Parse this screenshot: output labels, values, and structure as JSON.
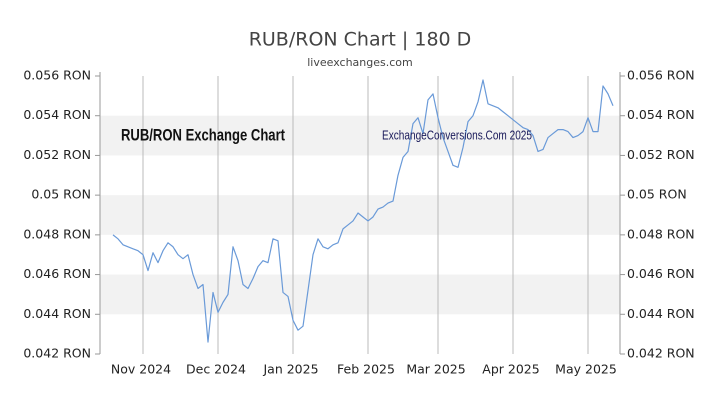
{
  "chart_data": {
    "type": "line",
    "title": "RUB/RON Chart | 180 D",
    "subtitle": "liveexchanges.com",
    "annotations": [
      "RUB/RON Exchange Chart",
      "ExchangeConversions.Com 2025"
    ],
    "categories": [
      null,
      null,
      null,
      null,
      null,
      null,
      "Nov 2024",
      null,
      null,
      null,
      null,
      null,
      null,
      null,
      null,
      null,
      null,
      null,
      null,
      null,
      null,
      "Dec 2024",
      null,
      null,
      null,
      null,
      null,
      null,
      null,
      null,
      null,
      null,
      null,
      null,
      null,
      null,
      "Jan 2025",
      null,
      null,
      null,
      null,
      null,
      null,
      null,
      null,
      null,
      null,
      null,
      null,
      null,
      null,
      "Feb 2025",
      null,
      null,
      null,
      null,
      null,
      null,
      null,
      null,
      null,
      null,
      null,
      null,
      null,
      "Mar 2025",
      null,
      null,
      null,
      null,
      null,
      null,
      null,
      null,
      null,
      null,
      null,
      null,
      null,
      null,
      "Apr 2025",
      null,
      null,
      null,
      null,
      null,
      null,
      null,
      null,
      null,
      null,
      null,
      null,
      null,
      null,
      "May 2025",
      null,
      null,
      null,
      null,
      null
    ],
    "series": [
      {
        "name": "RUB/RON",
        "color": "#6a9ad8",
        "values": [
          0.048,
          0.0478,
          0.0475,
          0.0474,
          0.0473,
          0.0472,
          0.047,
          0.0462,
          0.0471,
          0.0466,
          0.0472,
          0.0476,
          0.0474,
          0.047,
          0.0468,
          0.047,
          0.046,
          0.0453,
          0.0455,
          0.0426,
          0.0451,
          0.0441,
          0.0446,
          0.045,
          0.0474,
          0.0467,
          0.0455,
          0.0453,
          0.0458,
          0.0464,
          0.0467,
          0.0466,
          0.0478,
          0.0477,
          0.0451,
          0.0449,
          0.0437,
          0.0432,
          0.0434,
          0.0452,
          0.047,
          0.0478,
          0.0474,
          0.0473,
          0.0475,
          0.0476,
          0.0483,
          0.0485,
          0.0487,
          0.0491,
          0.0489,
          0.0487,
          0.0489,
          0.0493,
          0.0494,
          0.0496,
          0.0497,
          0.051,
          0.0519,
          0.0522,
          0.0536,
          0.0539,
          0.0531,
          0.0548,
          0.0551,
          0.0539,
          0.0529,
          0.0522,
          0.0515,
          0.0514,
          0.0524,
          0.0537,
          0.054,
          0.0547,
          0.0558,
          0.0546,
          0.0545,
          0.0544,
          0.0542,
          0.054,
          0.0538,
          0.0536,
          0.0534,
          0.0533,
          0.053,
          0.0522,
          0.0523,
          0.0529,
          0.0531,
          0.0533,
          0.0533,
          0.0532,
          0.0529,
          0.053,
          0.0532,
          0.0539,
          0.0532,
          0.0532,
          0.0555,
          0.0551,
          0.0545
        ]
      }
    ],
    "ylim": [
      0.042,
      0.056
    ],
    "yticks": [
      {
        "value": 0.042,
        "label": "0.042 RON"
      },
      {
        "value": 0.044,
        "label": "0.044 RON"
      },
      {
        "value": 0.046,
        "label": "0.046 RON"
      },
      {
        "value": 0.048,
        "label": "0.048 RON"
      },
      {
        "value": 0.05,
        "label": "0.05 RON"
      },
      {
        "value": 0.052,
        "label": "0.052 RON"
      },
      {
        "value": 0.054,
        "label": "0.054 RON"
      },
      {
        "value": 0.056,
        "label": "0.056 RON"
      }
    ],
    "grid": true
  }
}
